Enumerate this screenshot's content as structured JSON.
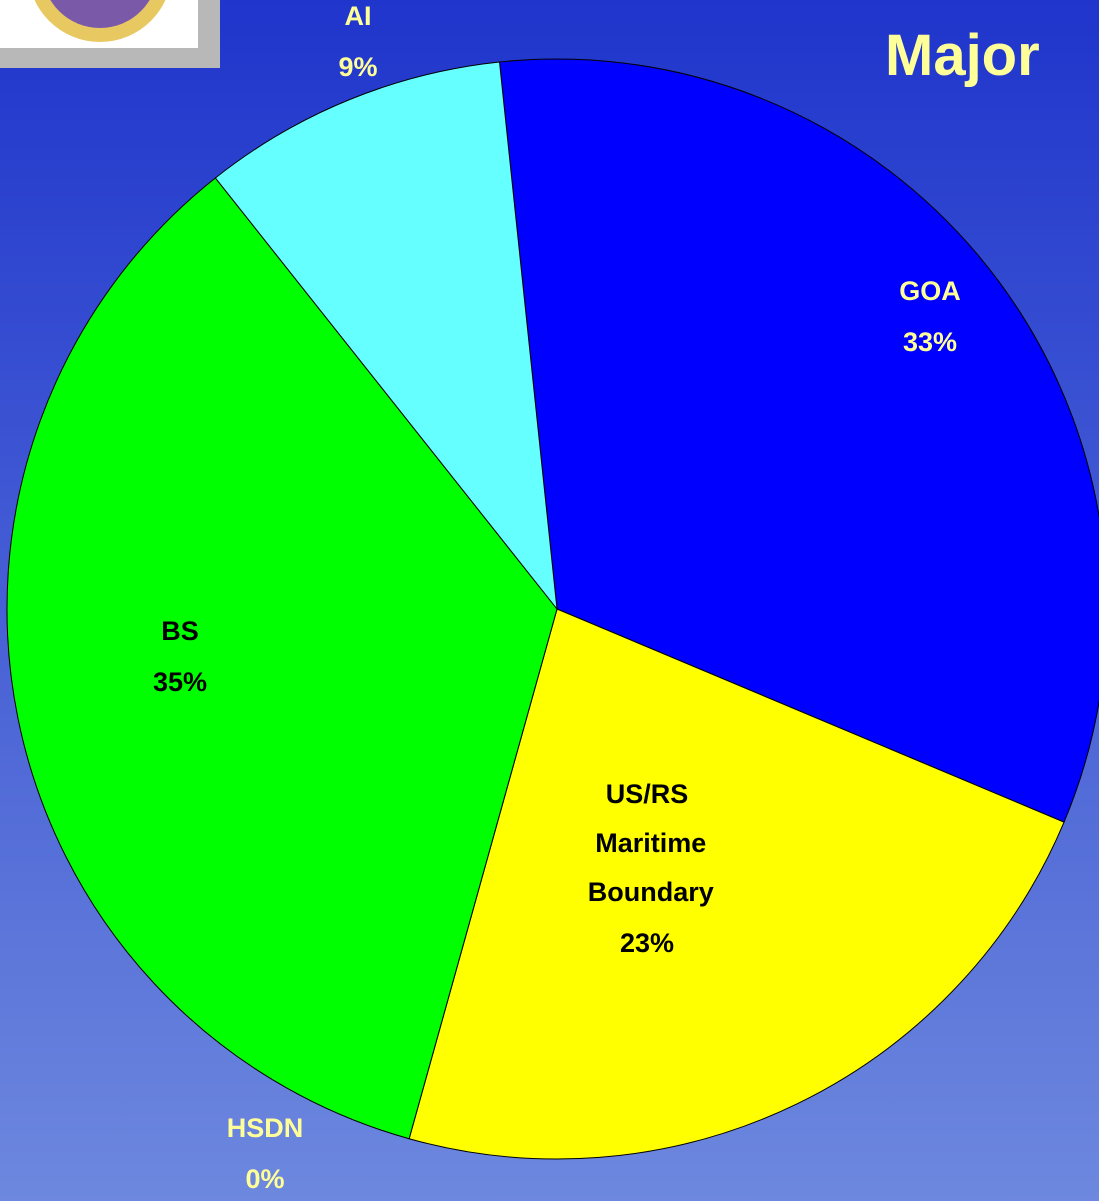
{
  "chart_data": {
    "type": "pie",
    "title": "Major",
    "categories": [
      "GOA",
      "US/RS Maritime Boundary",
      "HSDN",
      "BS",
      "AI"
    ],
    "values": [
      33,
      23,
      0,
      35,
      9
    ],
    "value_labels": [
      "33%",
      "23%",
      "0%",
      "35%",
      "9%"
    ],
    "colors": [
      "#0000ff",
      "#ffff00",
      "#ff00ff",
      "#00ff00",
      "#66ffff"
    ]
  }
}
